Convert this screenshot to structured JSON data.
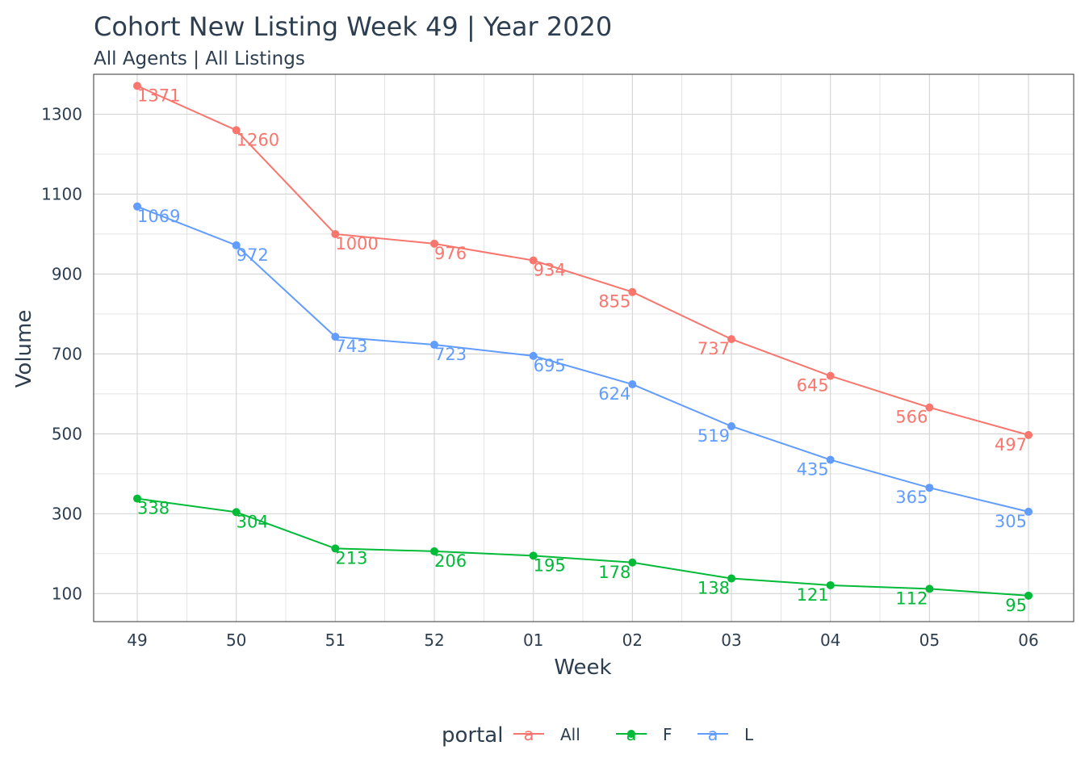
{
  "chart_data": {
    "type": "line",
    "title": "Cohort New Listing Week 49 | Year 2020",
    "subtitle": "All Agents | All Listings",
    "xlabel": "Week",
    "ylabel": "Volume",
    "categories": [
      "49",
      "50",
      "51",
      "52",
      "01",
      "02",
      "03",
      "04",
      "05",
      "06"
    ],
    "ylim": [
      30,
      1400
    ],
    "y_ticks": [
      100,
      300,
      500,
      700,
      900,
      1100,
      1300
    ],
    "grid": true,
    "legend": {
      "title": "portal",
      "position": "bottom",
      "key_glyph": "a"
    },
    "series": [
      {
        "name": "All",
        "color": "#F8766D",
        "values": [
          1371,
          1260,
          1000,
          976,
          934,
          855,
          737,
          645,
          566,
          497
        ]
      },
      {
        "name": "F",
        "color": "#00BA38",
        "values": [
          338,
          304,
          213,
          206,
          195,
          178,
          138,
          121,
          112,
          95
        ]
      },
      {
        "name": "L",
        "color": "#619CFF",
        "values": [
          1069,
          972,
          743,
          723,
          695,
          624,
          519,
          435,
          365,
          305
        ]
      }
    ]
  }
}
